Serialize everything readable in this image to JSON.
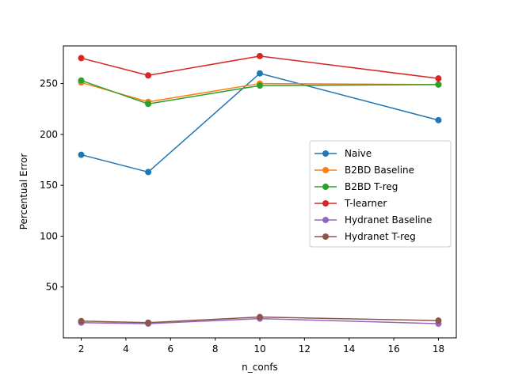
{
  "chart_data": {
    "type": "line",
    "title": "",
    "xlabel": "n_confs",
    "ylabel": "Percentual Error",
    "x": [
      2,
      5,
      10,
      18
    ],
    "xlim": [
      1.2,
      18.8
    ],
    "ylim": [
      0,
      287
    ],
    "xticks": [
      2,
      4,
      6,
      8,
      10,
      12,
      14,
      16,
      18
    ],
    "yticks": [
      50,
      100,
      150,
      200,
      250
    ],
    "grid": false,
    "legend_position": "center-right",
    "series": [
      {
        "name": "Naive",
        "color": "#1f77b4",
        "values": [
          180,
          163,
          260,
          214
        ]
      },
      {
        "name": "B2BD Baseline",
        "color": "#ff7f0e",
        "values": [
          251,
          232,
          250,
          249
        ]
      },
      {
        "name": "B2BD T-reg",
        "color": "#2ca02c",
        "values": [
          253,
          230,
          248,
          249
        ]
      },
      {
        "name": "T-learner",
        "color": "#d62728",
        "values": [
          275,
          258,
          277,
          255
        ]
      },
      {
        "name": "Hydranet Baseline",
        "color": "#9467bd",
        "values": [
          15,
          14,
          19,
          14
        ]
      },
      {
        "name": "Hydranet T-reg",
        "color": "#8c564b",
        "values": [
          16.5,
          15,
          20.5,
          17
        ]
      }
    ]
  }
}
